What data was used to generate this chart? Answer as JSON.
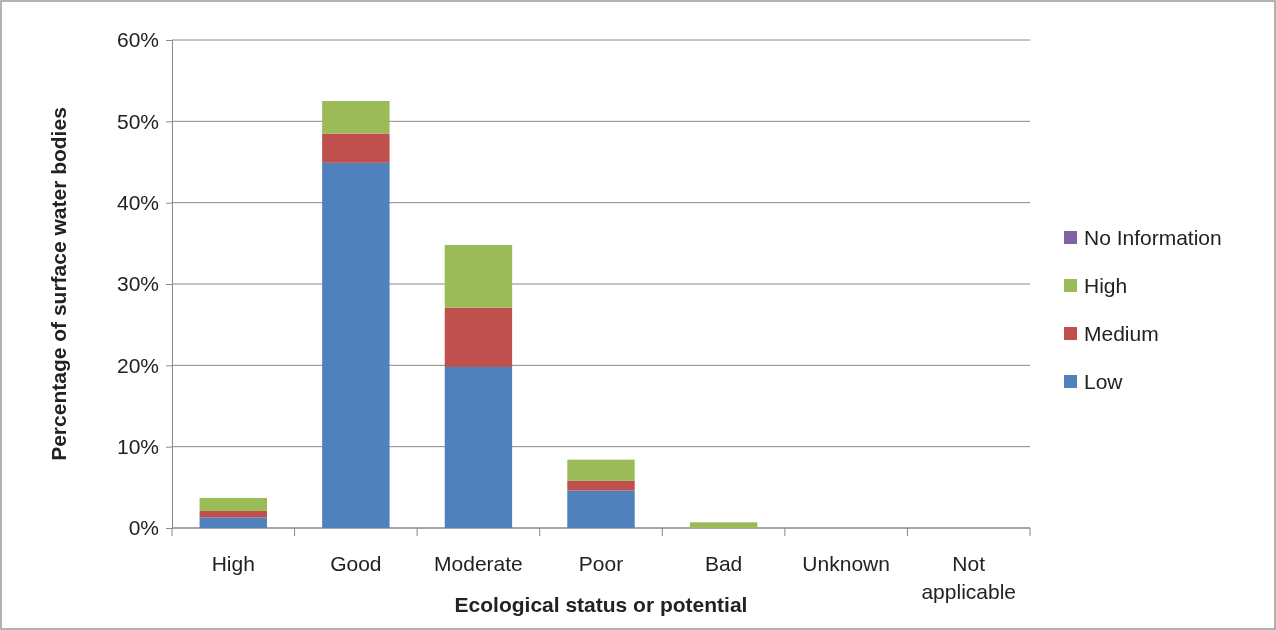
{
  "chart_data": {
    "type": "bar",
    "stacked": true,
    "xlabel": "Ecological status or potential",
    "ylabel": "Percentage of surface water bodies",
    "categories": [
      "High",
      "Good",
      "Moderate",
      "Poor",
      "Bad",
      "Unknown",
      "Not applicable"
    ],
    "series": [
      {
        "name": "Low",
        "color": "#4f81bd",
        "values": [
          1.3,
          44.9,
          19.8,
          4.6,
          0,
          0,
          0
        ]
      },
      {
        "name": "Medium",
        "color": "#c0504d",
        "values": [
          0.8,
          3.6,
          7.3,
          1.2,
          0,
          0,
          0
        ]
      },
      {
        "name": "High",
        "color": "#9bbb59",
        "values": [
          1.6,
          4.0,
          7.7,
          2.6,
          0.7,
          0,
          0
        ]
      },
      {
        "name": "No Information",
        "color": "#8064a2",
        "values": [
          0,
          0,
          0,
          0,
          0,
          0,
          0
        ]
      }
    ],
    "ylim": [
      0,
      60
    ],
    "yticks": [
      {
        "value": 0,
        "label": "0%"
      },
      {
        "value": 10,
        "label": "10%"
      },
      {
        "value": 20,
        "label": "20%"
      },
      {
        "value": 30,
        "label": "30%"
      },
      {
        "value": 40,
        "label": "40%"
      },
      {
        "value": 50,
        "label": "50%"
      },
      {
        "value": 60,
        "label": "60%"
      }
    ],
    "grid": "y",
    "legend": "right"
  }
}
